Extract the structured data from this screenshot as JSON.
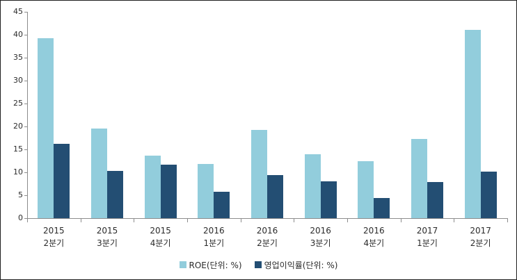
{
  "chart_data": {
    "type": "bar",
    "title": "",
    "categories": [
      [
        "2015",
        "2분기"
      ],
      [
        "2015",
        "3분기"
      ],
      [
        "2015",
        "4분기"
      ],
      [
        "2016",
        "1분기"
      ],
      [
        "2016",
        "2분기"
      ],
      [
        "2016",
        "3분기"
      ],
      [
        "2016",
        "4분기"
      ],
      [
        "2017",
        "1분기"
      ],
      [
        "2017",
        "2분기"
      ]
    ],
    "series": [
      {
        "name": "ROE(단위: %)",
        "color": "#92CDDC",
        "values": [
          39.3,
          19.6,
          13.7,
          11.8,
          19.3,
          14.0,
          12.4,
          17.2,
          41.0
        ]
      },
      {
        "name": "영업이익률(단위: %)",
        "color": "#234E73",
        "values": [
          16.2,
          10.3,
          11.6,
          5.7,
          9.4,
          8.0,
          4.4,
          7.9,
          10.1
        ]
      }
    ],
    "ylim": [
      0,
      45
    ],
    "yticks": [
      0,
      5,
      10,
      15,
      20,
      25,
      30,
      35,
      40,
      45
    ],
    "xlabel": "",
    "ylabel": "",
    "grid": false,
    "legend_position": "bottom"
  },
  "colors": {
    "axis": "#8c8c8c",
    "text": "#2b2b2b",
    "background": "#ffffff",
    "series1": "#92CDDC",
    "series2": "#234E73"
  }
}
